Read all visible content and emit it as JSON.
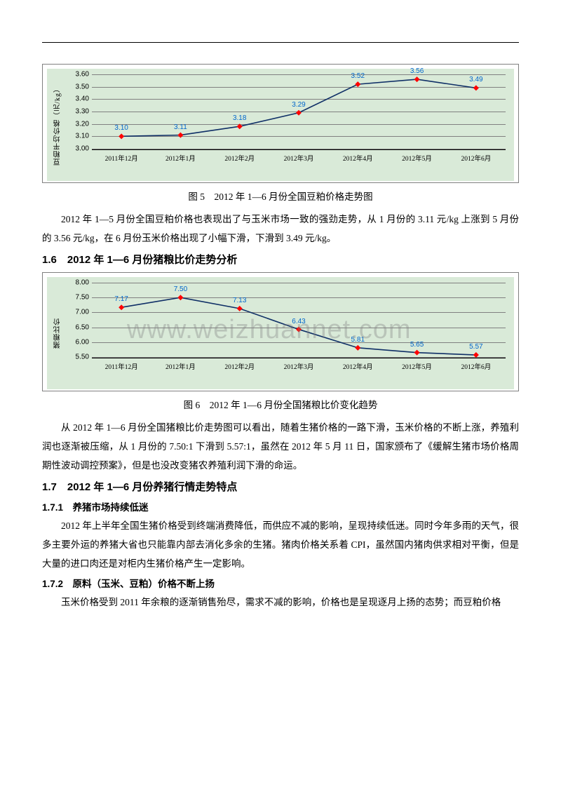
{
  "watermark": "www.weizhuannet.com",
  "chart1": {
    "type": "line",
    "ylabel": "豆粕平均价格（元/kg）",
    "background_color": "#d9ead8",
    "grid_color": "#808080",
    "line_color": "#0f2f66",
    "marker_color": "#ff0000",
    "label_color": "#0066cc",
    "ylim": [
      3.0,
      3.6
    ],
    "ytick_step": 0.1,
    "yticks": [
      "3.00",
      "3.10",
      "3.20",
      "3.30",
      "3.40",
      "3.50",
      "3.60"
    ],
    "categories": [
      "2011年12月",
      "2012年1月",
      "2012年2月",
      "2012年3月",
      "2012年4月",
      "2012年5月",
      "2012年6月"
    ],
    "values": [
      3.1,
      3.11,
      3.18,
      3.29,
      3.52,
      3.56,
      3.49
    ],
    "labels": [
      "3.10",
      "3.11",
      "3.18",
      "3.29",
      "3.52",
      "3.56",
      "3.49"
    ]
  },
  "caption1": "图 5　2012 年 1—6 月份全国豆粕价格走势图",
  "para1": "2012 年 1—5 月份全国豆粕价格也表现出了与玉米市场一致的强劲走势，从 1 月份的 3.11 元/kg 上涨到 5 月份的 3.56 元/kg，在 6 月份玉米价格出现了小幅下滑，下滑到 3.49 元/kg。",
  "heading16": "1.6　2012 年 1—6 月份猪粮比价走势分析",
  "chart2": {
    "type": "line",
    "ylabel": "猪粮比价",
    "background_color": "#d9ead8",
    "grid_color": "#808080",
    "line_color": "#0f2f66",
    "marker_color": "#ff0000",
    "label_color": "#0066cc",
    "ylim": [
      5.5,
      8.0
    ],
    "ytick_step": 0.5,
    "yticks": [
      "5.50",
      "6.00",
      "6.50",
      "7.00",
      "7.50",
      "8.00"
    ],
    "categories": [
      "2011年12月",
      "2012年1月",
      "2012年2月",
      "2012年3月",
      "2012年4月",
      "2012年5月",
      "2012年6月"
    ],
    "values": [
      7.17,
      7.5,
      7.13,
      6.43,
      5.81,
      5.65,
      5.57
    ],
    "labels": [
      "7.17",
      "7.50",
      "7.13",
      "6.43",
      "5.81",
      "5.65",
      "5.57"
    ]
  },
  "caption2": "图 6　2012 年 1—6 月份全国猪粮比价变化趋势",
  "para2": "从 2012 年 1—6 月份全国猪粮比价走势图可以看出，随着生猪价格的一路下滑，玉米价格的不断上涨，养殖利润也逐渐被压缩，从 1 月份的 7.50:1 下滑到 5.57:1，虽然在 2012 年 5 月 11 日，国家颁布了《缓解生猪市场价格周期性波动调控预案》，但是也没改变猪农养殖利润下滑的命运。",
  "heading17": "1.7　2012 年 1—6 月份养猪行情走势特点",
  "heading171": "1.7.1　养猪市场持续低迷",
  "para3": "2012 年上半年全国生猪价格受到终端消费降低，而供应不减的影响，呈现持续低迷。同时今年多雨的天气，很多主要外运的养猪大省也只能靠内部去消化多余的生猪。猪肉价格关系着 CPI，虽然国内猪肉供求相对平衡，但是大量的进口肉还是对柜内生猪价格产生一定影响。",
  "heading172": "1.7.2　原料（玉米、豆粕）价格不断上扬",
  "para4": "玉米价格受到 2011 年余粮的逐渐销售殆尽，需求不减的影响，价格也是呈现逐月上扬的态势；而豆粕价格"
}
